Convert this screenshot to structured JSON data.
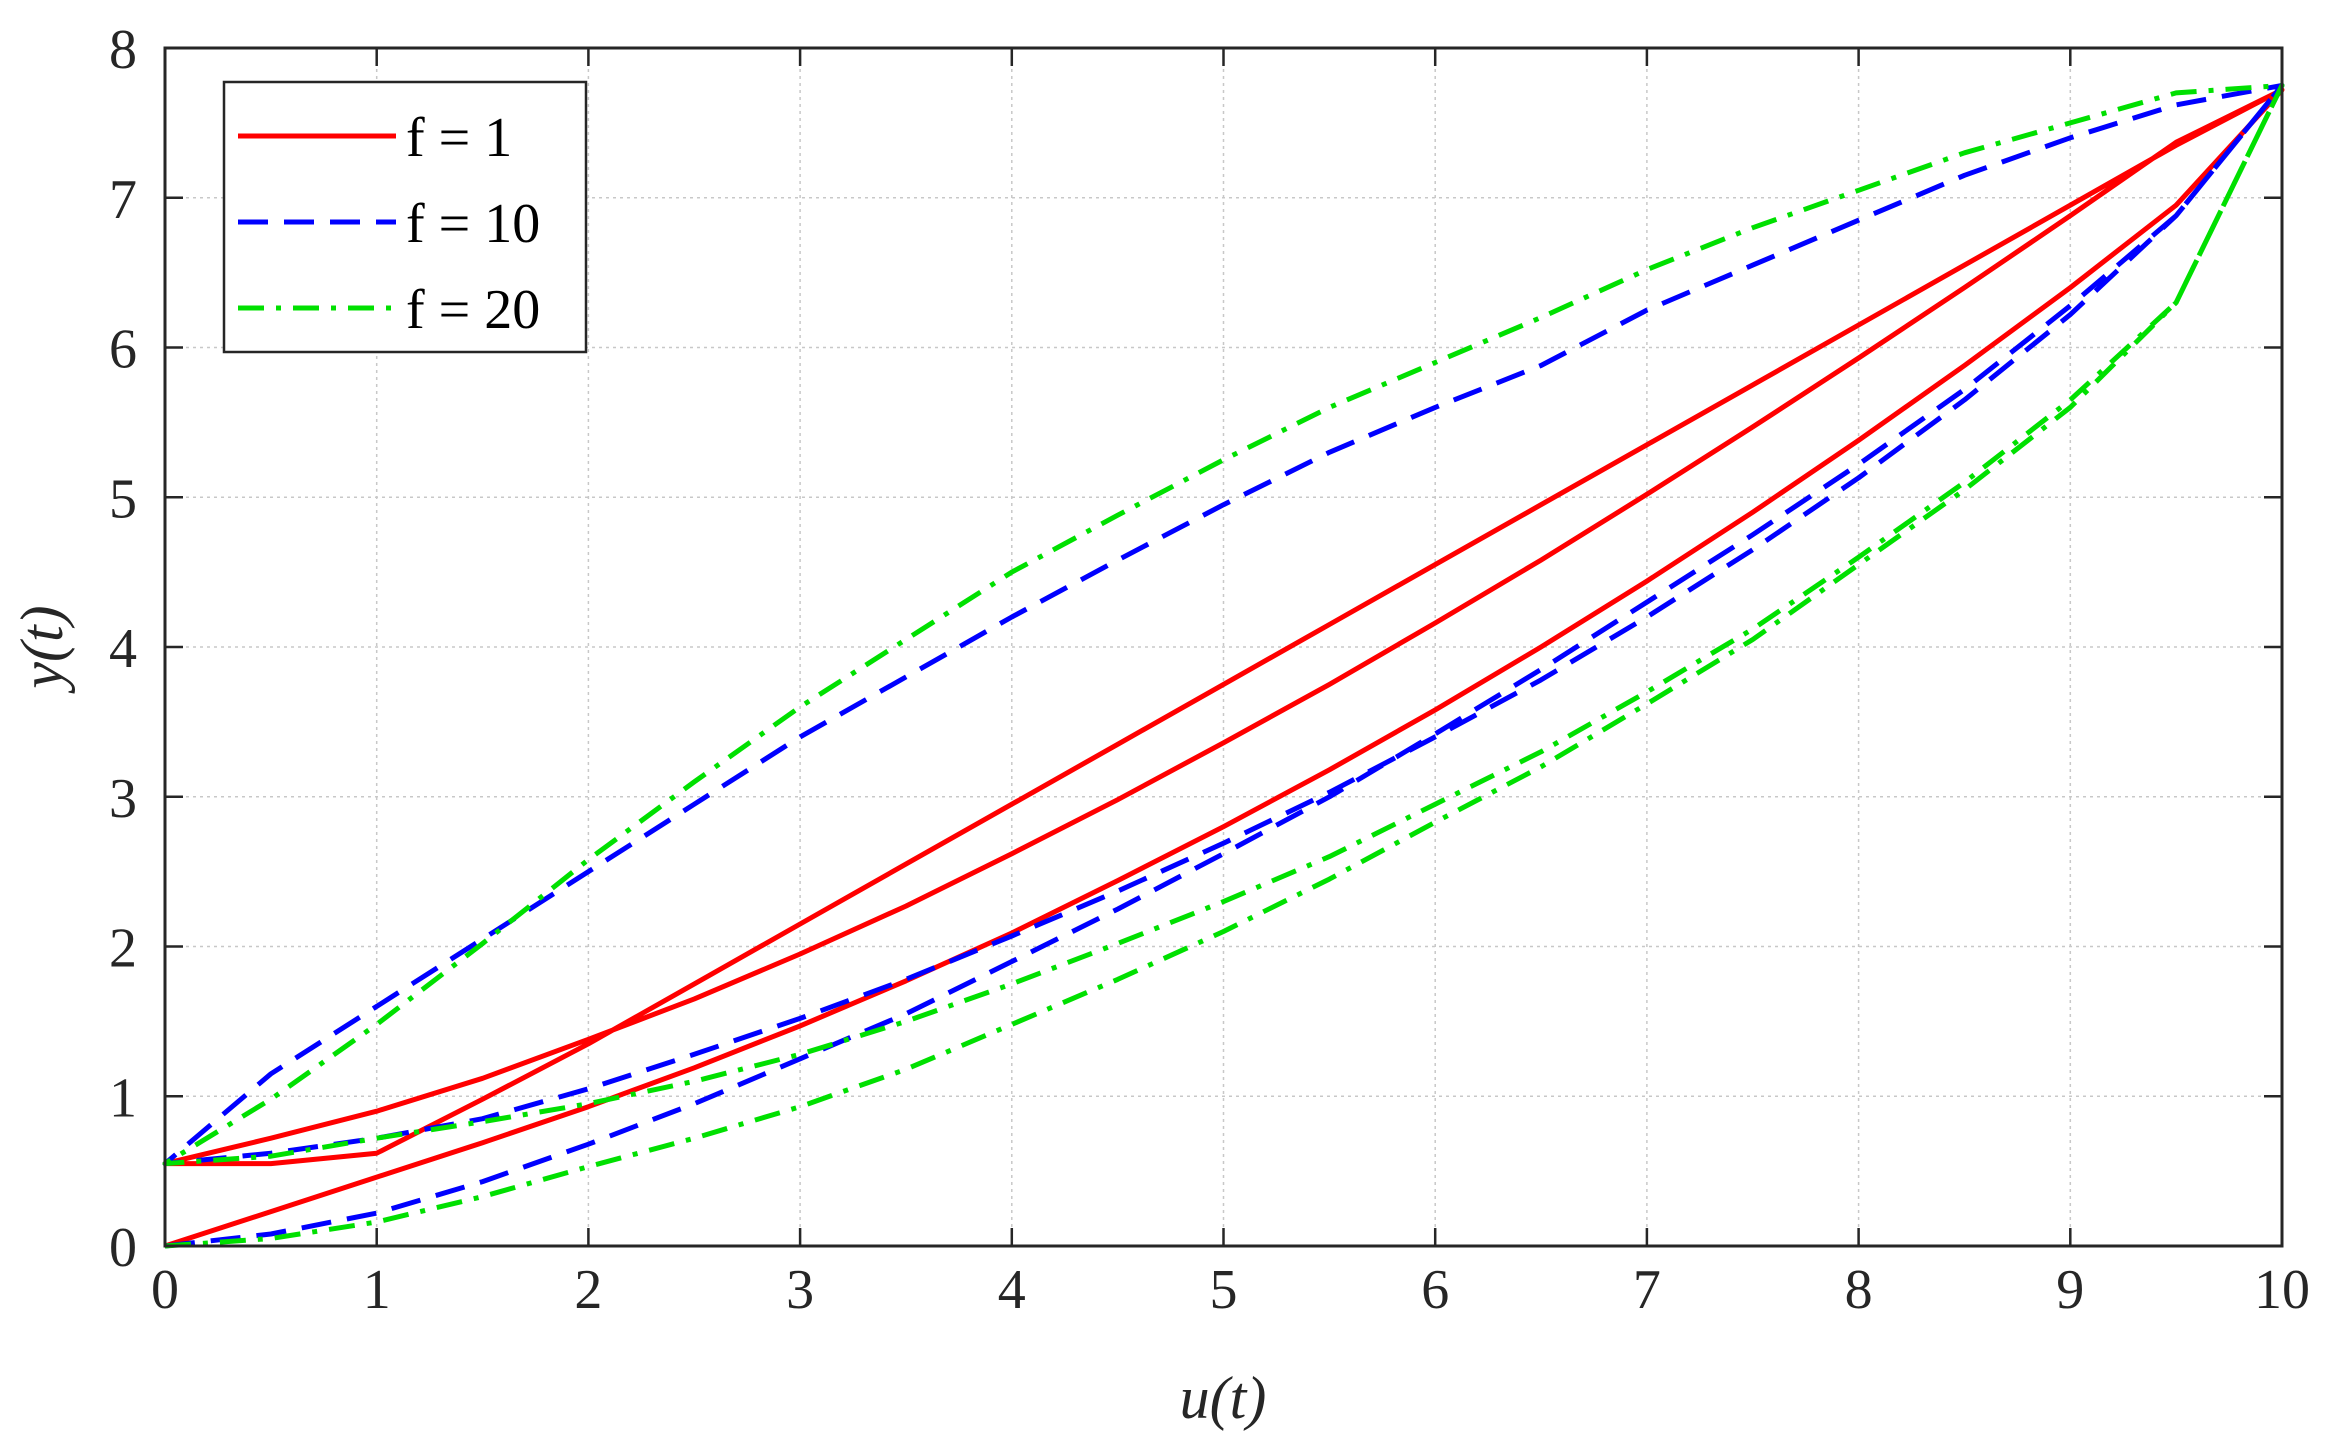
{
  "chart_data": {
    "type": "line",
    "xlabel": "u(t)",
    "ylabel": "y(t)",
    "xlim": [
      0,
      10
    ],
    "ylim": [
      0,
      8
    ],
    "xticks": [
      "0",
      "1",
      "2",
      "3",
      "4",
      "5",
      "6",
      "7",
      "8",
      "9",
      "10"
    ],
    "yticks": [
      "0",
      "1",
      "2",
      "3",
      "4",
      "5",
      "6",
      "7",
      "8"
    ],
    "grid": true,
    "legend_position": "top-left",
    "series": [
      {
        "name": "f = 1",
        "color": "#ff0000",
        "dash": "solid",
        "x": [
          0,
          0.5,
          1,
          1.5,
          2,
          2.5,
          3,
          3.5,
          4,
          4.5,
          5,
          5.5,
          6,
          6.5,
          7,
          7.5,
          8,
          8.5,
          9,
          9.5,
          10,
          9.5,
          9,
          8.5,
          8,
          7.5,
          7,
          6.5,
          6,
          5.5,
          5,
          4.5,
          4,
          3.5,
          3,
          2.5,
          2,
          1.5,
          1,
          0.5,
          0,
          0.5,
          1,
          1.5,
          2,
          2.5,
          3,
          3.5,
          4,
          4.5,
          5,
          5.5,
          6,
          6.5,
          7,
          7.5,
          8,
          8.5,
          9,
          9.5,
          10
        ],
        "y": [
          0,
          0.23,
          0.46,
          0.69,
          0.93,
          1.19,
          1.47,
          1.77,
          2.09,
          2.44,
          2.8,
          3.18,
          3.58,
          4.0,
          4.44,
          4.9,
          5.38,
          5.88,
          6.4,
          6.95,
          7.72,
          7.35,
          6.95,
          6.55,
          6.15,
          5.75,
          5.35,
          4.95,
          4.55,
          4.15,
          3.75,
          3.35,
          2.95,
          2.55,
          2.15,
          1.75,
          1.35,
          0.98,
          0.62,
          0.55,
          0.55,
          0.72,
          0.9,
          1.12,
          1.38,
          1.65,
          1.95,
          2.27,
          2.62,
          2.98,
          3.36,
          3.75,
          4.16,
          4.58,
          5.02,
          5.47,
          5.93,
          6.4,
          6.88,
          7.37,
          7.72
        ]
      },
      {
        "name": "f = 10",
        "color": "#0000ff",
        "dash": "dashed",
        "x": [
          0,
          0.5,
          1,
          1.5,
          2,
          2.5,
          3,
          3.5,
          4,
          4.5,
          5,
          5.5,
          6,
          6.5,
          7,
          7.5,
          8,
          8.5,
          9,
          9.5,
          10,
          9.5,
          9,
          8.5,
          8,
          7.5,
          7,
          6.5,
          6,
          5.5,
          5,
          4.5,
          4,
          3.5,
          3,
          2.5,
          2,
          1.5,
          1,
          0.5,
          0,
          0.5,
          1,
          1.5,
          2,
          2.5,
          3,
          3.5,
          4,
          4.5,
          5,
          5.5,
          6,
          6.5,
          7,
          7.5,
          8,
          8.5,
          9,
          9.5,
          10
        ],
        "y": [
          0,
          0.08,
          0.22,
          0.43,
          0.68,
          0.95,
          1.25,
          1.55,
          1.9,
          2.25,
          2.62,
          3.0,
          3.42,
          3.85,
          4.3,
          4.75,
          5.22,
          5.72,
          6.28,
          6.88,
          7.75,
          7.62,
          7.4,
          7.15,
          6.85,
          6.55,
          6.25,
          5.88,
          5.6,
          5.3,
          4.95,
          4.58,
          4.2,
          3.8,
          3.4,
          2.95,
          2.5,
          2.05,
          1.6,
          1.15,
          0.55,
          0.62,
          0.72,
          0.85,
          1.05,
          1.28,
          1.52,
          1.78,
          2.07,
          2.37,
          2.69,
          3.03,
          3.4,
          3.78,
          4.2,
          4.65,
          5.13,
          5.65,
          6.22,
          6.88,
          7.75
        ]
      },
      {
        "name": "f = 20",
        "color": "#00e000",
        "dash": "dashdot",
        "x": [
          0,
          0.5,
          1,
          1.5,
          2,
          2.5,
          3,
          3.5,
          4,
          4.5,
          5,
          5.5,
          6,
          6.5,
          7,
          7.5,
          8,
          8.5,
          9,
          9.5,
          10,
          9.5,
          9,
          8.5,
          8,
          7.5,
          7,
          6.5,
          6,
          5.5,
          5,
          4.5,
          4,
          3.5,
          3,
          2.5,
          2,
          1.5,
          1,
          0.5,
          0,
          0.5,
          1,
          1.5,
          2,
          2.5,
          3,
          3.5,
          4,
          4.5,
          5,
          5.5,
          6,
          6.5,
          7,
          7.5,
          8,
          8.5,
          9,
          9.5,
          10
        ],
        "y": [
          0,
          0.05,
          0.16,
          0.33,
          0.53,
          0.72,
          0.93,
          1.18,
          1.48,
          1.78,
          2.1,
          2.45,
          2.83,
          3.2,
          3.62,
          4.05,
          4.55,
          5.05,
          5.6,
          6.3,
          7.75,
          7.7,
          7.5,
          7.3,
          7.05,
          6.8,
          6.52,
          6.2,
          5.9,
          5.6,
          5.25,
          4.88,
          4.5,
          4.05,
          3.6,
          3.1,
          2.58,
          2.02,
          1.48,
          0.98,
          0.55,
          0.6,
          0.72,
          0.83,
          0.95,
          1.1,
          1.28,
          1.5,
          1.75,
          2.02,
          2.3,
          2.6,
          2.95,
          3.3,
          3.7,
          4.12,
          4.6,
          5.1,
          5.65,
          6.3,
          7.75
        ]
      }
    ]
  }
}
